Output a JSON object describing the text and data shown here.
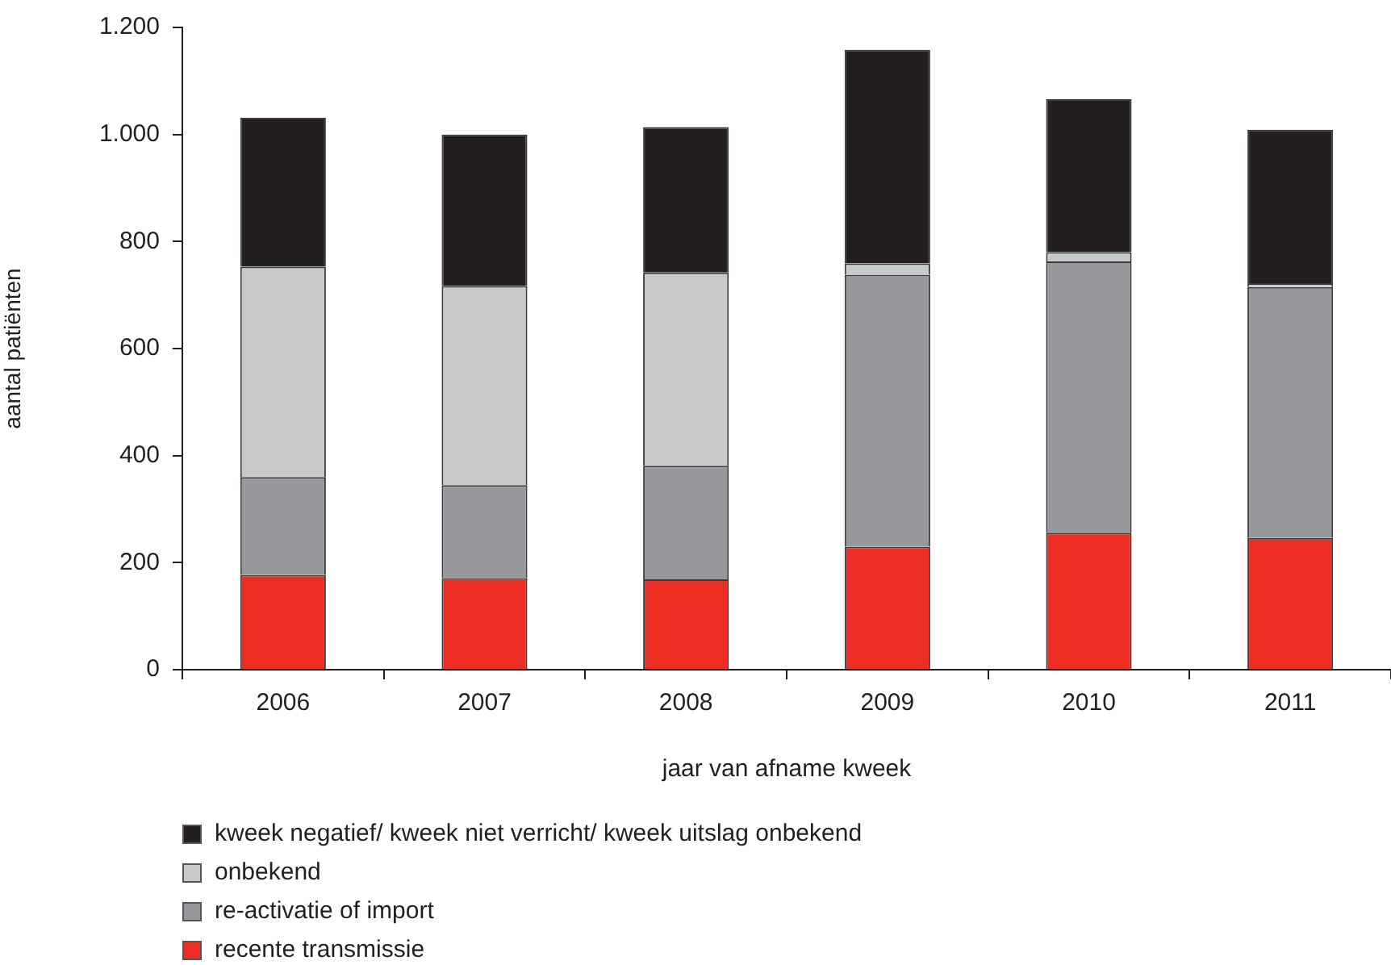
{
  "chart_data": {
    "type": "bar",
    "xlabel": "jaar van afname kweek",
    "ylabel": "aantal patiënten",
    "categories": [
      "2006",
      "2007",
      "2008",
      "2009",
      "2010",
      "2011"
    ],
    "series": [
      {
        "name": "recente transmissie",
        "color": "#ec2d24",
        "values": [
          177,
          171,
          169,
          230,
          256,
          246
        ]
      },
      {
        "name": "re-activatie of import",
        "color": "#97989c",
        "values": [
          183,
          174,
          212,
          508,
          507,
          469
        ]
      },
      {
        "name": "onbekend",
        "color": "#c8c9cb",
        "values": [
          393,
          372,
          361,
          21,
          17,
          7
        ]
      },
      {
        "name": "kweek negatief/ kweek niet verricht/ kweek uitslag onbekend",
        "color": "#231f20",
        "values": [
          278,
          283,
          272,
          399,
          286,
          287
        ]
      }
    ],
    "stacked": true,
    "ylim": [
      0,
      1200
    ],
    "yticks": [
      0,
      200,
      400,
      600,
      800,
      {
        "value": 1000,
        "label": "1.000"
      },
      {
        "value": 1200,
        "label": "1.200"
      }
    ],
    "legend": "bottom left"
  }
}
